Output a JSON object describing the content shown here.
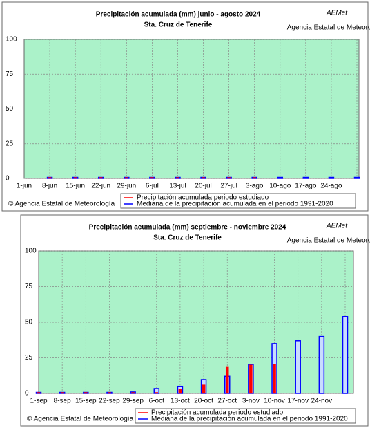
{
  "chart_data": [
    {
      "type": "bar",
      "title": "Precipitación acumulada (mm) junio - agosto 2024",
      "subtitle": "Sta. Cruz de Tenerife",
      "logo": "AEMet",
      "logo_caption": "Agencia Estatal de Meteorología",
      "footer": "© Agencia Estatal de Meteorología",
      "categories": [
        "1-jun",
        "8-jun",
        "15-jun",
        "22-jun",
        "29-jun",
        "6-jul",
        "13-jul",
        "20-jul",
        "27-jul",
        "3-ago",
        "10-ago",
        "17-ago",
        "24-ago",
        null
      ],
      "series": [
        {
          "name": "Mediana de la precipitación acumulada en el periodo 1991-2020",
          "color": "#0000ff",
          "values": [
            null,
            0,
            0,
            0,
            0,
            0,
            0,
            0,
            0,
            0,
            0,
            0,
            0,
            0
          ]
        },
        {
          "name": "Precipitación acumulada periodo estudiado",
          "color": "#ff0000",
          "values": [
            null,
            0,
            0,
            0,
            0,
            0,
            0,
            0,
            0,
            0,
            null,
            null,
            null,
            null
          ]
        }
      ],
      "ylim": [
        0,
        100
      ],
      "yticks": [
        0,
        25,
        50,
        75,
        100
      ],
      "grid": true
    },
    {
      "type": "bar",
      "title": "Precipitación acumulada (mm) septiembre - noviembre 2024",
      "subtitle": "Sta. Cruz de Tenerife",
      "logo": "AEMet",
      "logo_caption": "Agencia Estatal de Meteorología",
      "footer": "© Agencia Estatal de Meteorología",
      "categories": [
        "1-sep",
        "8-sep",
        "15-sep",
        "22-sep",
        "29-sep",
        "6-oct",
        "13-oct",
        "20-oct",
        "27-oct",
        "3-nov",
        "10-nov",
        "17-nov",
        "24-nov",
        null
      ],
      "series": [
        {
          "name": "Mediana de la precipitación acumulada en el periodo 1991-2020",
          "color": "#0000ff",
          "values": [
            0,
            0,
            0,
            0.3,
            1,
            3.4,
            5,
            9.7,
            12,
            20.4,
            35,
            37,
            40,
            54
          ]
        },
        {
          "name": "Precipitación acumulada periodo estudiado",
          "color": "#ff0000",
          "values": [
            0,
            0,
            0,
            0,
            0,
            0,
            3,
            6,
            18.5,
            20,
            20.5,
            null,
            null,
            null
          ]
        }
      ],
      "ylim": [
        0,
        100
      ],
      "yticks": [
        0,
        25,
        50,
        75,
        100
      ],
      "grid": true
    }
  ]
}
